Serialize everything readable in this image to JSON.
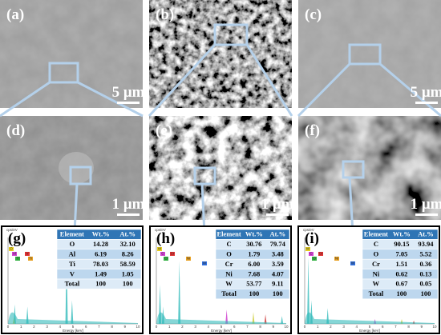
{
  "panels": [
    {
      "label": "(a)",
      "scale": "5 μm"
    },
    {
      "label": "(b)",
      "scale": ""
    },
    {
      "label": "(c)",
      "scale": "5 μm"
    },
    {
      "label": "(d)",
      "scale": "1 μm"
    },
    {
      "label": "(e)",
      "scale": "1 μm"
    },
    {
      "label": "(f)",
      "scale": "1 μm"
    }
  ],
  "spectra": [
    {
      "label": "(g)",
      "y_axis": "cps/eV",
      "x_axis": "Energy [keV]",
      "xticks": [
        "0",
        "1",
        "2",
        "3",
        "4",
        "5",
        "6",
        "7",
        "8",
        "9",
        "10"
      ],
      "peaks": [
        "O",
        "Al",
        "Ti",
        "V",
        "Ti"
      ],
      "table": {
        "header": [
          "Element",
          "Wt.%",
          "At.%"
        ],
        "rows": [
          [
            "O",
            "14.28",
            "32.10"
          ],
          [
            "Al",
            "6.19",
            "8.26"
          ],
          [
            "Ti",
            "78.03",
            "58.59"
          ],
          [
            "V",
            "1.49",
            "1.05"
          ],
          [
            "Total",
            "100",
            "100"
          ]
        ]
      }
    },
    {
      "label": "(h)",
      "y_axis": "cps/eV",
      "x_axis": "Energy [keV]",
      "xticks": [
        "0",
        "1",
        "2",
        "3",
        "4",
        "5",
        "6",
        "7",
        "8",
        "9",
        "10"
      ],
      "peaks": [
        "W",
        "C",
        "O",
        "Cr",
        "Ni",
        "W"
      ],
      "table": {
        "header": [
          "Element",
          "Wt.%",
          "At.%"
        ],
        "rows": [
          [
            "C",
            "30.76",
            "79.74"
          ],
          [
            "O",
            "1.79",
            "3.48"
          ],
          [
            "Cr",
            "6.00",
            "3.59"
          ],
          [
            "Ni",
            "7.68",
            "4.07"
          ],
          [
            "W",
            "53.77",
            "9.11"
          ],
          [
            "Total",
            "100",
            "100"
          ]
        ]
      }
    },
    {
      "label": "(i)",
      "y_axis": "cps/eV",
      "x_axis": "Energy [keV]",
      "xticks": [
        "0",
        "1",
        "2",
        "3",
        "4",
        "5",
        "6",
        "7",
        "8",
        "9",
        "10"
      ],
      "peaks": [
        "W",
        "C",
        "O",
        "Cr",
        "Ni",
        "W"
      ],
      "table": {
        "header": [
          "Element",
          "Wt.%",
          "At.%"
        ],
        "rows": [
          [
            "C",
            "90.15",
            "93.94"
          ],
          [
            "O",
            "7.05",
            "5.52"
          ],
          [
            "Cr",
            "1.51",
            "0.36"
          ],
          [
            "Ni",
            "0.62",
            "0.13"
          ],
          [
            "W",
            "0.67",
            "0.05"
          ],
          [
            "Total",
            "100",
            "100"
          ]
        ]
      }
    }
  ]
}
